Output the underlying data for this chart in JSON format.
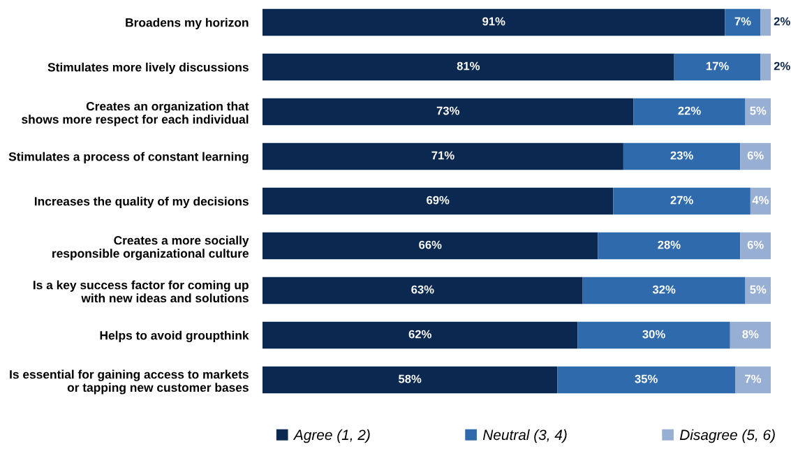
{
  "chart_data": {
    "type": "bar",
    "orientation": "horizontal",
    "stacked": true,
    "legend": "bottom",
    "tick_labels": "y",
    "categories": [
      "Broadens my horizon",
      "Stimulates more lively discussions",
      "Creates an organization that\nshows more respect for each individual",
      "Stimulates a process of constant learning",
      "Increases the quality of my decisions",
      "Creates a more socially\nresponsible organizational culture",
      "Is a key success factor for coming up\nwith new ideas and solutions",
      "Helps to avoid groupthink",
      "Is essential for gaining access to markets\nor tapping new customer bases"
    ],
    "series": [
      {
        "name": "Agree (1, 2)",
        "color": "#0b2850",
        "values": [
          91,
          81,
          73,
          71,
          69,
          66,
          63,
          62,
          58
        ],
        "value_labels": [
          "91%",
          "81%",
          "73%",
          "71%",
          "69%",
          "66%",
          "63%",
          "62%",
          "58%"
        ]
      },
      {
        "name": "Neutral (3, 4)",
        "color": "#2f6aad",
        "values": [
          7,
          17,
          22,
          23,
          27,
          28,
          32,
          30,
          35
        ],
        "value_labels": [
          "7%",
          "17%",
          "22%",
          "23%",
          "27%",
          "28%",
          "32%",
          "30%",
          "35%"
        ]
      },
      {
        "name": "Disagree (5, 6)",
        "color": "#97afd2",
        "values": [
          2,
          2,
          5,
          6,
          4,
          6,
          5,
          8,
          7
        ],
        "value_labels": [
          "2%",
          "2%",
          "5%",
          "6%",
          "4%",
          "6%",
          "5%",
          "8%",
          "7%"
        ]
      }
    ]
  }
}
